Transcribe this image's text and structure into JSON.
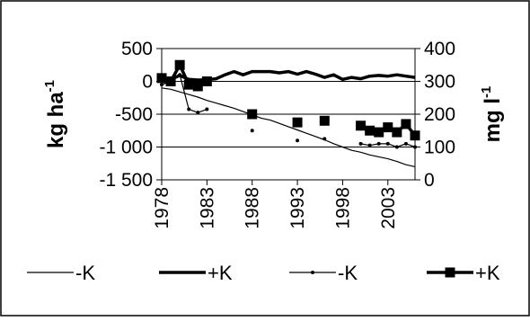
{
  "chart_data": {
    "type": "line",
    "title": "",
    "left_axis": {
      "label": "kg ha",
      "label_superscript": "-1",
      "ylim": [
        -1500,
        500
      ],
      "ticks": [
        "500",
        "0",
        "-500",
        "-1 000",
        "-1 500"
      ],
      "tick_values": [
        500,
        0,
        -500,
        -1000,
        -1500
      ]
    },
    "right_axis": {
      "label": "mg l",
      "label_superscript": "-1",
      "ylim": [
        0,
        400
      ],
      "ticks": [
        "400",
        "300",
        "200",
        "100",
        "0"
      ],
      "tick_values": [
        400,
        300,
        200,
        100,
        0
      ]
    },
    "x_axis": {
      "range": [
        1978,
        2006
      ],
      "ticks": [
        "1978",
        "1983",
        "1988",
        "1993",
        "1998",
        "2003"
      ],
      "tick_values": [
        1978,
        1983,
        1988,
        1993,
        1998,
        2003
      ]
    },
    "grid": true,
    "legend_position": "bottom",
    "series": [
      {
        "name": "-K",
        "axis": "left",
        "style": "thin-line",
        "x": [
          1978,
          1979,
          1980,
          1981,
          1982,
          1983,
          1984,
          1985,
          1986,
          1987,
          1988,
          1989,
          1990,
          1991,
          1992,
          1993,
          1994,
          1995,
          1996,
          1997,
          1998,
          1999,
          2000,
          2001,
          2002,
          2003,
          2004,
          2005,
          2006
        ],
        "values": [
          -100,
          -120,
          -160,
          -200,
          -240,
          -290,
          -330,
          -370,
          -410,
          -460,
          -510,
          -560,
          -590,
          -640,
          -690,
          -740,
          -790,
          -840,
          -890,
          -950,
          -1000,
          -1050,
          -1080,
          -1120,
          -1150,
          -1180,
          -1220,
          -1270,
          -1300
        ]
      },
      {
        "name": "+K",
        "axis": "left",
        "style": "thick-line",
        "x": [
          1978,
          1979,
          1980,
          1981,
          1982,
          1983,
          1984,
          1985,
          1986,
          1987,
          1988,
          1989,
          1990,
          1991,
          1992,
          1993,
          1994,
          1995,
          1996,
          1997,
          1998,
          1999,
          2000,
          2001,
          2002,
          2003,
          2004,
          2005,
          2006
        ],
        "values": [
          20,
          30,
          90,
          30,
          20,
          25,
          40,
          100,
          150,
          100,
          150,
          150,
          150,
          130,
          150,
          110,
          150,
          110,
          60,
          100,
          30,
          60,
          40,
          80,
          90,
          80,
          100,
          80,
          60
        ]
      },
      {
        "name": "-K",
        "axis": "right",
        "style": "thin-line-small-markers",
        "x": [
          1978,
          1979,
          1980,
          1981,
          1982,
          1983,
          1988,
          1993,
          1996,
          2000,
          2001,
          2002,
          2003,
          2004,
          2005,
          2006
        ],
        "values": [
          290,
          300,
          320,
          215,
          205,
          215,
          150,
          120,
          125,
          110,
          105,
          110,
          110,
          100,
          110,
          100
        ]
      },
      {
        "name": "+K",
        "axis": "right",
        "style": "thick-line-square-markers",
        "x": [
          1978,
          1979,
          1980,
          1981,
          1982,
          1983,
          1988,
          1993,
          1996,
          2000,
          2001,
          2002,
          2003,
          2004,
          2005,
          2006
        ],
        "values": [
          310,
          300,
          350,
          290,
          285,
          300,
          200,
          175,
          180,
          165,
          150,
          145,
          160,
          145,
          170,
          135
        ]
      }
    ],
    "legend": [
      {
        "label": "-K",
        "style": "thin-line"
      },
      {
        "label": "+K",
        "style": "thick-line"
      },
      {
        "label": "-K",
        "style": "thin-line-small-markers"
      },
      {
        "label": "+K",
        "style": "thick-line-square-markers"
      }
    ]
  }
}
